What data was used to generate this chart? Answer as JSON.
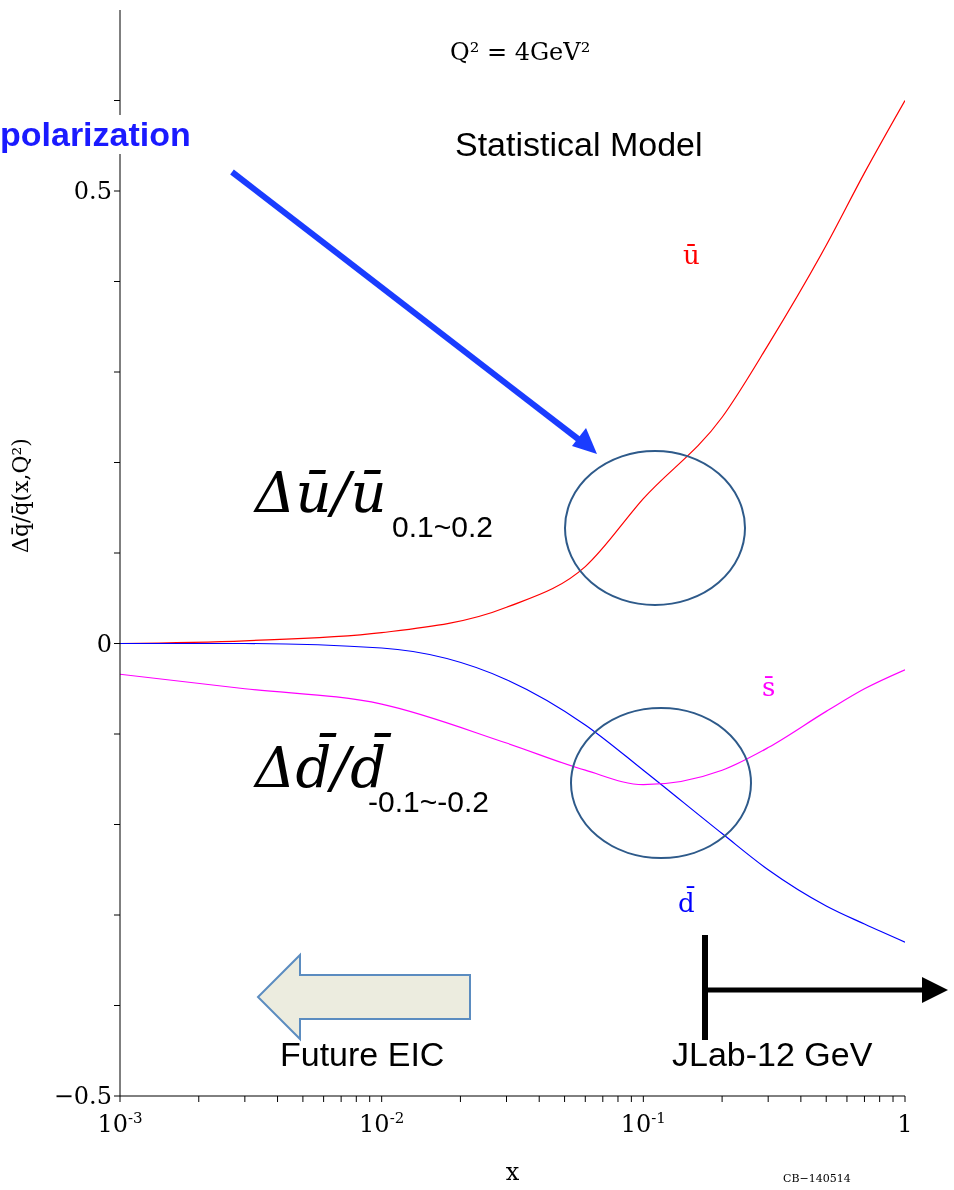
{
  "chart_data": {
    "type": "line",
    "xlabel": "x",
    "ylabel": "Δq̄/q̄(x,Q²)",
    "log": "x",
    "xlim": [
      0.001,
      1
    ],
    "ylim": [
      -0.5,
      0.7
    ],
    "xticks": [
      {
        "value": 0.001,
        "label": "10$^{-3}$"
      },
      {
        "value": 0.002,
        "label": null
      },
      {
        "value": 0.003,
        "label": null
      },
      {
        "value": 0.004,
        "label": null
      },
      {
        "value": 0.005,
        "label": null
      },
      {
        "value": 0.006,
        "label": null
      },
      {
        "value": 0.007,
        "label": null
      },
      {
        "value": 0.008,
        "label": null
      },
      {
        "value": 0.009,
        "label": null
      },
      {
        "value": 0.01,
        "label": "10$^{-2}$"
      },
      {
        "value": 0.02,
        "label": null
      },
      {
        "value": 0.03,
        "label": null
      },
      {
        "value": 0.04,
        "label": null
      },
      {
        "value": 0.05,
        "label": null
      },
      {
        "value": 0.06,
        "label": null
      },
      {
        "value": 0.07,
        "label": null
      },
      {
        "value": 0.08,
        "label": null
      },
      {
        "value": 0.09,
        "label": null
      },
      {
        "value": 0.1,
        "label": "10$^{-1}$"
      },
      {
        "value": 0.2,
        "label": null
      },
      {
        "value": 0.3,
        "label": null
      },
      {
        "value": 0.4,
        "label": null
      },
      {
        "value": 0.5,
        "label": null
      },
      {
        "value": 0.6,
        "label": null
      },
      {
        "value": 0.7,
        "label": null
      },
      {
        "value": 0.8,
        "label": null
      },
      {
        "value": 0.9,
        "label": null
      },
      {
        "value": 1,
        "label": "1"
      }
    ],
    "yticks": [
      {
        "value": -0.5,
        "label": "−0.5"
      },
      {
        "value": -0.4,
        "label": null
      },
      {
        "value": -0.3,
        "label": null
      },
      {
        "value": -0.2,
        "label": null
      },
      {
        "value": -0.1,
        "label": null
      },
      0,
      {
        "value": 0.1,
        "label": null
      },
      {
        "value": 0.2,
        "label": null
      },
      {
        "value": 0.3,
        "label": null
      },
      {
        "value": 0.4,
        "label": null
      },
      0.5,
      {
        "value": 0.6,
        "label": null
      }
    ],
    "x": [
      0.001,
      0.003,
      0.01,
      0.03,
      0.06,
      0.1,
      0.2,
      0.3,
      0.5,
      0.7,
      1
    ],
    "series": [
      {
        "name": "ū",
        "color": "#ff0000",
        "values": [
          0,
          0.003,
          0.012,
          0.04,
          0.085,
          0.16,
          0.25,
          0.33,
          0.44,
          0.52,
          0.6
        ]
      },
      {
        "name": "d̄",
        "color": "#0000ff",
        "values": [
          0,
          0,
          -0.005,
          -0.04,
          -0.09,
          -0.14,
          -0.21,
          -0.25,
          -0.29,
          -0.31,
          -0.33
        ]
      },
      {
        "name": "s̄",
        "color": "#ff00ff",
        "values": [
          -0.034,
          -0.05,
          -0.067,
          -0.11,
          -0.14,
          -0.156,
          -0.14,
          -0.115,
          -0.075,
          -0.05,
          -0.029
        ]
      }
    ],
    "marker": "none",
    "line_style": "solid",
    "grid": false,
    "legend": false,
    "annotations": [
      "Q² = 4GeV²",
      "Statistical Model",
      "polarization",
      "Δū/ū",
      "0.1~0.2",
      "Δd̄/d̄",
      "-0.1~-0.2",
      "Future EIC",
      "JLab-12 GeV",
      "CB−140514"
    ]
  }
}
